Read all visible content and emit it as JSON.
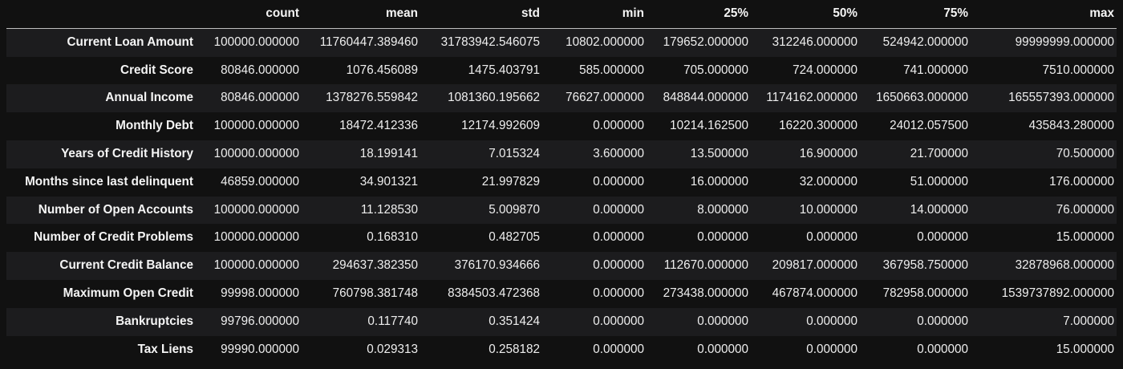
{
  "table": {
    "columns": [
      "count",
      "mean",
      "std",
      "min",
      "25%",
      "50%",
      "75%",
      "max"
    ],
    "rows": [
      {
        "label": "Current Loan Amount",
        "values": [
          "100000.000000",
          "11760447.389460",
          "31783942.546075",
          "10802.000000",
          "179652.000000",
          "312246.000000",
          "524942.000000",
          "99999999.000000"
        ]
      },
      {
        "label": "Credit Score",
        "values": [
          "80846.000000",
          "1076.456089",
          "1475.403791",
          "585.000000",
          "705.000000",
          "724.000000",
          "741.000000",
          "7510.000000"
        ]
      },
      {
        "label": "Annual Income",
        "values": [
          "80846.000000",
          "1378276.559842",
          "1081360.195662",
          "76627.000000",
          "848844.000000",
          "1174162.000000",
          "1650663.000000",
          "165557393.000000"
        ]
      },
      {
        "label": "Monthly Debt",
        "values": [
          "100000.000000",
          "18472.412336",
          "12174.992609",
          "0.000000",
          "10214.162500",
          "16220.300000",
          "24012.057500",
          "435843.280000"
        ]
      },
      {
        "label": "Years of Credit History",
        "values": [
          "100000.000000",
          "18.199141",
          "7.015324",
          "3.600000",
          "13.500000",
          "16.900000",
          "21.700000",
          "70.500000"
        ]
      },
      {
        "label": "Months since last delinquent",
        "values": [
          "46859.000000",
          "34.901321",
          "21.997829",
          "0.000000",
          "16.000000",
          "32.000000",
          "51.000000",
          "176.000000"
        ]
      },
      {
        "label": "Number of Open Accounts",
        "values": [
          "100000.000000",
          "11.128530",
          "5.009870",
          "0.000000",
          "8.000000",
          "10.000000",
          "14.000000",
          "76.000000"
        ]
      },
      {
        "label": "Number of Credit Problems",
        "values": [
          "100000.000000",
          "0.168310",
          "0.482705",
          "0.000000",
          "0.000000",
          "0.000000",
          "0.000000",
          "15.000000"
        ]
      },
      {
        "label": "Current Credit Balance",
        "values": [
          "100000.000000",
          "294637.382350",
          "376170.934666",
          "0.000000",
          "112670.000000",
          "209817.000000",
          "367958.750000",
          "32878968.000000"
        ]
      },
      {
        "label": "Maximum Open Credit",
        "values": [
          "99998.000000",
          "760798.381748",
          "8384503.472368",
          "0.000000",
          "273438.000000",
          "467874.000000",
          "782958.000000",
          "1539737892.000000"
        ]
      },
      {
        "label": "Bankruptcies",
        "values": [
          "99796.000000",
          "0.117740",
          "0.351424",
          "0.000000",
          "0.000000",
          "0.000000",
          "0.000000",
          "7.000000"
        ]
      },
      {
        "label": "Tax Liens",
        "values": [
          "99990.000000",
          "0.029313",
          "0.258182",
          "0.000000",
          "0.000000",
          "0.000000",
          "0.000000",
          "15.000000"
        ]
      }
    ]
  },
  "colors": {
    "background": "#111111",
    "row_stripe": "#1c1c1e",
    "text": "#f2f2f2",
    "header_rule": "#bfbfbf"
  }
}
